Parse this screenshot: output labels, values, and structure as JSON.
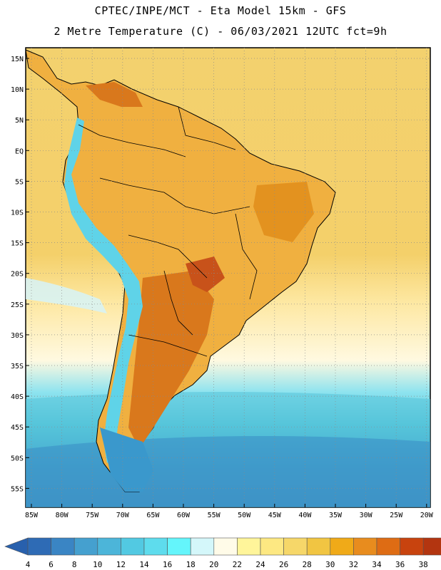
{
  "header": {
    "line1": "CPTEC/INPE/MCT -  Eta Model 15km - GFS",
    "line2": "2 Metre Temperature (C) - 06/03/2021 12UTC fct=9h"
  },
  "map": {
    "lat_ticks": [
      "15N",
      "10N",
      "5N",
      "EQ",
      "5S",
      "10S",
      "15S",
      "20S",
      "25S",
      "30S",
      "35S",
      "40S",
      "45S",
      "50S",
      "55S"
    ],
    "lon_ticks": [
      "85W",
      "80W",
      "75W",
      "70W",
      "65W",
      "60W",
      "55W",
      "50W",
      "45W",
      "40W",
      "35W",
      "30W",
      "25W",
      "20W"
    ]
  },
  "colorbar": {
    "labels": [
      "4",
      "6",
      "8",
      "10",
      "12",
      "14",
      "16",
      "18",
      "20",
      "22",
      "24",
      "26",
      "28",
      "30",
      "32",
      "34",
      "36",
      "38"
    ],
    "colors": [
      "#2e6bb5",
      "#3a85c4",
      "#45a0cf",
      "#4cb5d9",
      "#52c9e2",
      "#5edced",
      "#64f5fb",
      "#d4f7fa",
      "#fffbe8",
      "#fff59a",
      "#fde882",
      "#f6d769",
      "#f1c542",
      "#f0aa18",
      "#e88c1e",
      "#de6c14",
      "#c8430e",
      "#b33510"
    ],
    "low_color": "#2860ad",
    "high_color": "#b13010"
  }
}
